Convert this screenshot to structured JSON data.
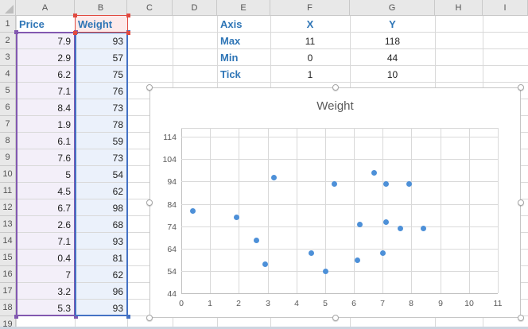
{
  "sheet": {
    "column_headers": [
      "A",
      "B",
      "C",
      "D",
      "E",
      "F",
      "G",
      "H",
      "I"
    ],
    "row_headers": [
      "1",
      "2",
      "3",
      "4",
      "5",
      "6",
      "7",
      "8",
      "9",
      "10",
      "11",
      "12",
      "13",
      "14",
      "15",
      "16",
      "17",
      "18",
      "19"
    ],
    "price_table": {
      "headers": [
        "Price",
        "Weight"
      ],
      "rows": [
        [
          7.9,
          93
        ],
        [
          2.9,
          57
        ],
        [
          6.2,
          75
        ],
        [
          7.1,
          76
        ],
        [
          8.4,
          73
        ],
        [
          1.9,
          78
        ],
        [
          6.1,
          59
        ],
        [
          7.6,
          73
        ],
        [
          5,
          54
        ],
        [
          4.5,
          62
        ],
        [
          6.7,
          98
        ],
        [
          2.6,
          68
        ],
        [
          7.1,
          93
        ],
        [
          0.4,
          81
        ],
        [
          7,
          62
        ],
        [
          3.2,
          96
        ],
        [
          5.3,
          93
        ]
      ]
    },
    "axis_table": {
      "rows": [
        [
          "Axis",
          "X",
          "Y"
        ],
        [
          "Max",
          "11",
          "118"
        ],
        [
          "Min",
          "0",
          "44"
        ],
        [
          "Tick",
          "1",
          "10"
        ]
      ]
    }
  },
  "chart_data": {
    "type": "scatter",
    "title": "Weight",
    "series": [
      {
        "name": "Weight",
        "points": [
          [
            7.9,
            93
          ],
          [
            2.9,
            57
          ],
          [
            6.2,
            75
          ],
          [
            7.1,
            76
          ],
          [
            8.4,
            73
          ],
          [
            1.9,
            78
          ],
          [
            6.1,
            59
          ],
          [
            7.6,
            73
          ],
          [
            5,
            54
          ],
          [
            4.5,
            62
          ],
          [
            6.7,
            98
          ],
          [
            2.6,
            68
          ],
          [
            7.1,
            93
          ],
          [
            0.4,
            81
          ],
          [
            7,
            62
          ],
          [
            3.2,
            96
          ],
          [
            5.3,
            93
          ]
        ]
      }
    ],
    "xlim": [
      0,
      11
    ],
    "ylim": [
      44,
      118
    ],
    "x_ticks": [
      0,
      1,
      2,
      3,
      4,
      5,
      6,
      7,
      8,
      9,
      10,
      11
    ],
    "y_ticks": [
      44,
      54,
      64,
      74,
      84,
      94,
      104,
      114
    ],
    "grid": true,
    "legend": false
  },
  "colors": {
    "header_blue_text": "#2e75b6",
    "data_text": "#1f1f1f",
    "range_purple": "#8258b0",
    "range_blue": "#4472c4",
    "range_red": "#e04a40",
    "fill_purple": "#f3eff9",
    "fill_blue": "#ebf1fb",
    "fill_pink": "#fdeaea",
    "marker_blue": "#4d90d8",
    "gridline": "#d9d9d9",
    "axis_line": "#bfbfbf",
    "axis_text": "#595959"
  }
}
